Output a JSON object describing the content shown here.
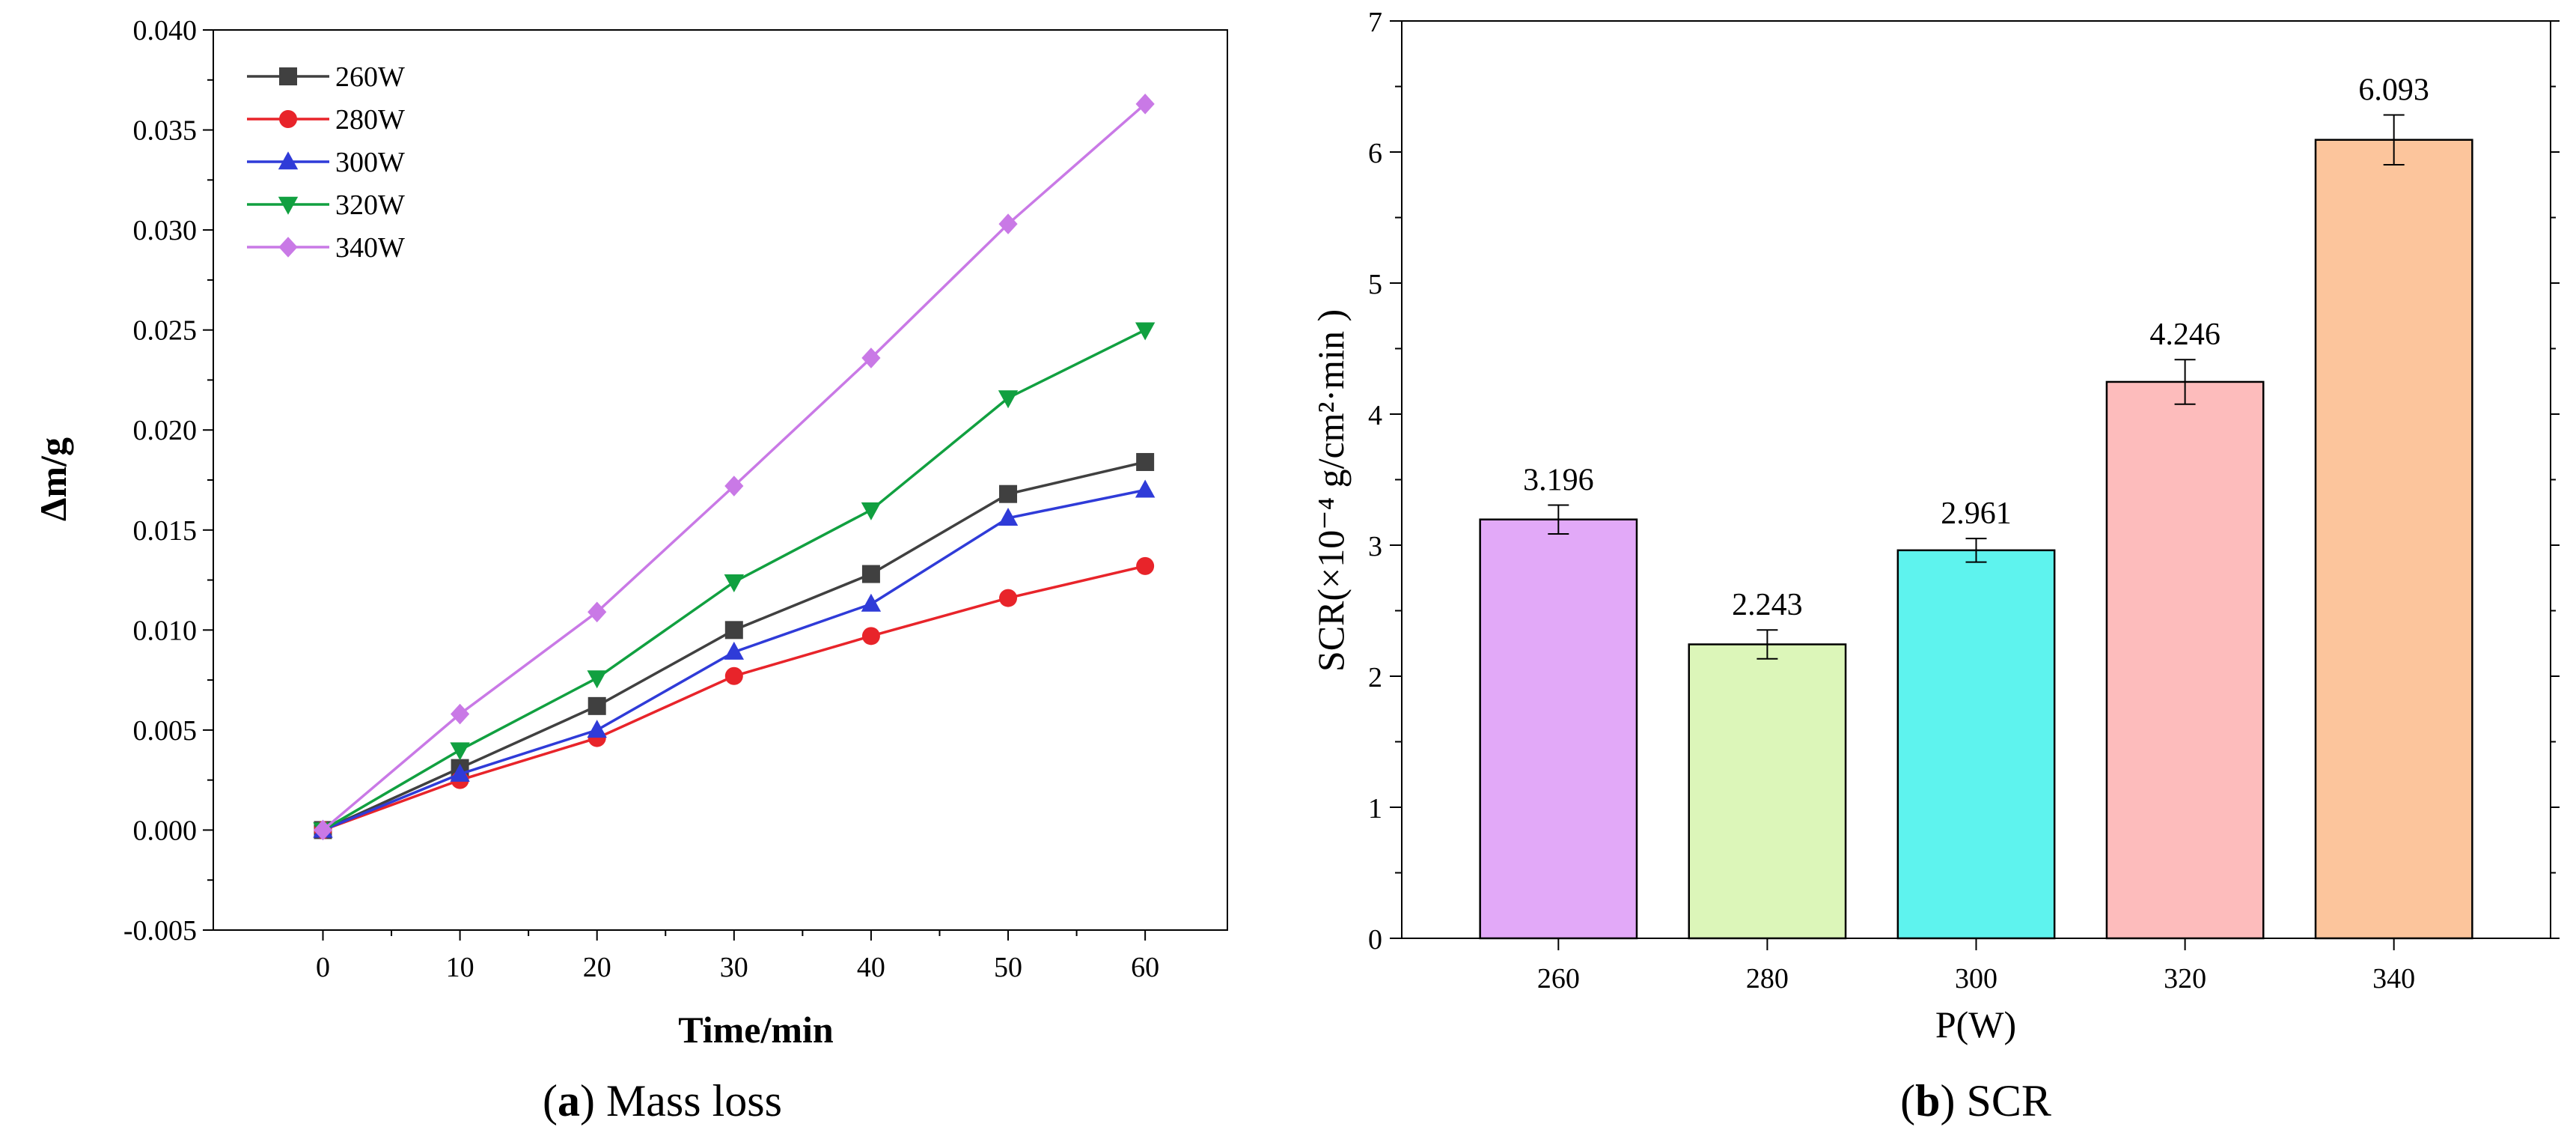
{
  "chart_data": [
    {
      "id": "a",
      "type": "line",
      "caption_letter": "a",
      "caption_text": "Mass loss",
      "xlabel": "Time/min",
      "ylabel": "Δm/g",
      "xlim": [
        -8,
        66
      ],
      "ylim": [
        -0.005,
        0.04
      ],
      "x_ticks": [
        "0",
        "10",
        "20",
        "30",
        "40",
        "50",
        "60"
      ],
      "y_ticks": [
        "-0.005",
        "0.000",
        "0.005",
        "0.010",
        "0.015",
        "0.020",
        "0.025",
        "0.030",
        "0.035",
        "0.040"
      ],
      "legend_position": "top-left",
      "x": [
        0,
        10,
        20,
        30,
        40,
        50,
        60
      ],
      "series": [
        {
          "name": "260W",
          "color": "#404040",
          "marker": "square",
          "values": [
            0.0,
            0.0031,
            0.0062,
            0.01,
            0.0128,
            0.0168,
            0.0184
          ]
        },
        {
          "name": "280W",
          "color": "#e8242a",
          "marker": "circle",
          "values": [
            0.0,
            0.0025,
            0.0046,
            0.0077,
            0.0097,
            0.0116,
            0.0132
          ]
        },
        {
          "name": "300W",
          "color": "#2f3bd8",
          "marker": "triangle-up",
          "values": [
            0.0,
            0.0028,
            0.005,
            0.0089,
            0.0113,
            0.0156,
            0.017
          ]
        },
        {
          "name": "320W",
          "color": "#11a040",
          "marker": "triangle-down",
          "values": [
            0.0,
            0.004,
            0.0076,
            0.0124,
            0.016,
            0.0216,
            0.025
          ]
        },
        {
          "name": "340W",
          "color": "#c979e6",
          "marker": "diamond",
          "values": [
            0.0,
            0.0058,
            0.0109,
            0.0172,
            0.0236,
            0.0303,
            0.0363
          ]
        }
      ]
    },
    {
      "id": "b",
      "type": "bar",
      "caption_letter": "b",
      "caption_text": "SCR",
      "xlabel": "P(W)",
      "ylabel": "SCR(×10⁻⁴ g/cm²·min )",
      "ylim": [
        0,
        7
      ],
      "y_ticks": [
        "0",
        "1",
        "2",
        "3",
        "4",
        "5",
        "6",
        "7"
      ],
      "categories": [
        "260",
        "280",
        "300",
        "320",
        "340"
      ],
      "values": [
        3.196,
        2.243,
        2.961,
        4.246,
        6.093
      ],
      "value_labels": [
        "3.196",
        "2.243",
        "2.961",
        "4.246",
        "6.093"
      ],
      "errors": [
        0.11,
        0.11,
        0.09,
        0.17,
        0.19
      ],
      "colors": [
        "#e2a9f8",
        "#dcf6b9",
        "#5ef3ee",
        "#fdbcbc",
        "#fcc59c"
      ]
    }
  ]
}
